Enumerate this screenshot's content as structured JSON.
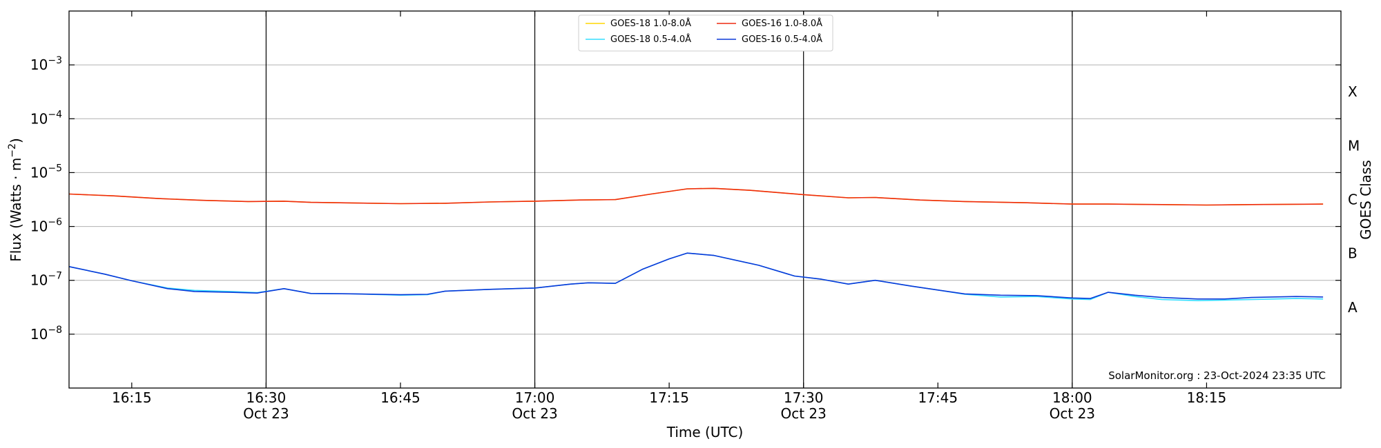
{
  "chart_data": {
    "type": "line",
    "xlabel": "Time (UTC)",
    "ylabel_main": "Flux (Watts · m",
    "ylabel_sup": "−2",
    "ylabel_end": ")",
    "y2label": "GOES Class",
    "yscale": "log",
    "ylim": [
      1e-09,
      0.01
    ],
    "xlim": [
      "16:08",
      "18:30"
    ],
    "grid": "horizontal",
    "x_ticks": [
      {
        "t": "16:15",
        "label": "16:15",
        "sub": ""
      },
      {
        "t": "16:30",
        "label": "16:30",
        "sub": "Oct 23"
      },
      {
        "t": "16:45",
        "label": "16:45",
        "sub": ""
      },
      {
        "t": "17:00",
        "label": "17:00",
        "sub": "Oct 23"
      },
      {
        "t": "17:15",
        "label": "17:15",
        "sub": ""
      },
      {
        "t": "17:30",
        "label": "17:30",
        "sub": "Oct 23"
      },
      {
        "t": "17:45",
        "label": "17:45",
        "sub": ""
      },
      {
        "t": "18:00",
        "label": "18:00",
        "sub": "Oct 23"
      },
      {
        "t": "18:15",
        "label": "18:15",
        "sub": ""
      }
    ],
    "vertical_lines": [
      "16:30",
      "17:00",
      "17:30",
      "18:00"
    ],
    "y_ticks": [
      {
        "v": 0.001,
        "base": "10",
        "exp": "−3"
      },
      {
        "v": 0.0001,
        "base": "10",
        "exp": "−4"
      },
      {
        "v": 1e-05,
        "base": "10",
        "exp": "−5"
      },
      {
        "v": 1e-06,
        "base": "10",
        "exp": "−6"
      },
      {
        "v": 1e-07,
        "base": "10",
        "exp": "−7"
      },
      {
        "v": 1e-08,
        "base": "10",
        "exp": "−8"
      }
    ],
    "class_labels": [
      {
        "v": 0.000316,
        "label": "X"
      },
      {
        "v": 3.16e-05,
        "label": "M"
      },
      {
        "v": 3.16e-06,
        "label": "C"
      },
      {
        "v": 3.16e-07,
        "label": "B"
      },
      {
        "v": 3.16e-08,
        "label": "A"
      }
    ],
    "legend_placement": "top-center",
    "legend_order": [
      0,
      2,
      1,
      3
    ],
    "credit": "SolarMonitor.org : 23-Oct-2024 23:35 UTC",
    "series": [
      {
        "name": "GOES-18 1.0-8.0Å",
        "color": "#ffd700",
        "points": [
          [
            "16:08",
            4e-06
          ],
          [
            "16:13",
            3.7e-06
          ],
          [
            "16:18",
            3.3e-06
          ],
          [
            "16:23",
            3.05e-06
          ],
          [
            "16:28",
            2.9e-06
          ],
          [
            "16:32",
            2.95e-06
          ],
          [
            "16:35",
            2.8e-06
          ],
          [
            "16:45",
            2.65e-06
          ],
          [
            "16:50",
            2.7e-06
          ],
          [
            "16:55",
            2.85e-06
          ],
          [
            "17:00",
            2.95e-06
          ],
          [
            "17:05",
            3.1e-06
          ],
          [
            "17:09",
            3.15e-06
          ],
          [
            "17:13",
            4e-06
          ],
          [
            "17:17",
            5e-06
          ],
          [
            "17:20",
            5.1e-06
          ],
          [
            "17:24",
            4.7e-06
          ],
          [
            "17:30",
            3.9e-06
          ],
          [
            "17:35",
            3.4e-06
          ],
          [
            "17:38",
            3.45e-06
          ],
          [
            "17:43",
            3.1e-06
          ],
          [
            "17:48",
            2.9e-06
          ],
          [
            "17:55",
            2.75e-06
          ],
          [
            "18:00",
            2.6e-06
          ],
          [
            "18:04",
            2.6e-06
          ],
          [
            "18:10",
            2.55e-06
          ],
          [
            "18:15",
            2.5e-06
          ],
          [
            "18:20",
            2.55e-06
          ],
          [
            "18:28",
            2.6e-06
          ]
        ]
      },
      {
        "name": "GOES-16 1.0-8.0Å",
        "color": "#ee2a10",
        "points": [
          [
            "16:08",
            4e-06
          ],
          [
            "16:13",
            3.7e-06
          ],
          [
            "16:18",
            3.3e-06
          ],
          [
            "16:23",
            3.05e-06
          ],
          [
            "16:28",
            2.9e-06
          ],
          [
            "16:32",
            2.95e-06
          ],
          [
            "16:35",
            2.8e-06
          ],
          [
            "16:45",
            2.65e-06
          ],
          [
            "16:50",
            2.7e-06
          ],
          [
            "16:55",
            2.85e-06
          ],
          [
            "17:00",
            2.95e-06
          ],
          [
            "17:05",
            3.1e-06
          ],
          [
            "17:09",
            3.15e-06
          ],
          [
            "17:13",
            4e-06
          ],
          [
            "17:17",
            5e-06
          ],
          [
            "17:20",
            5.1e-06
          ],
          [
            "17:24",
            4.7e-06
          ],
          [
            "17:30",
            3.9e-06
          ],
          [
            "17:35",
            3.4e-06
          ],
          [
            "17:38",
            3.45e-06
          ],
          [
            "17:43",
            3.1e-06
          ],
          [
            "17:48",
            2.9e-06
          ],
          [
            "17:55",
            2.75e-06
          ],
          [
            "18:00",
            2.6e-06
          ],
          [
            "18:04",
            2.6e-06
          ],
          [
            "18:10",
            2.55e-06
          ],
          [
            "18:15",
            2.5e-06
          ],
          [
            "18:20",
            2.55e-06
          ],
          [
            "18:28",
            2.6e-06
          ]
        ]
      },
      {
        "name": "GOES-18 0.5-4.0Å",
        "color": "#33ddff",
        "points": [
          [
            "16:08",
            1.8e-07
          ],
          [
            "16:12",
            1.3e-07
          ],
          [
            "16:15",
            9.8e-08
          ],
          [
            "16:19",
            7.2e-08
          ],
          [
            "16:22",
            6.5e-08
          ],
          [
            "16:26",
            6.2e-08
          ],
          [
            "16:29",
            5.9e-08
          ],
          [
            "16:32",
            7e-08
          ],
          [
            "16:35",
            5.7e-08
          ],
          [
            "16:40",
            5.6e-08
          ],
          [
            "16:45",
            5.3e-08
          ],
          [
            "16:48",
            5.4e-08
          ],
          [
            "16:50",
            6.3e-08
          ],
          [
            "16:55",
            6.8e-08
          ],
          [
            "17:00",
            7.2e-08
          ],
          [
            "17:04",
            8.5e-08
          ],
          [
            "17:06",
            9e-08
          ],
          [
            "17:09",
            8.8e-08
          ],
          [
            "17:12",
            1.6e-07
          ],
          [
            "17:15",
            2.5e-07
          ],
          [
            "17:17",
            3.2e-07
          ],
          [
            "17:20",
            2.9e-07
          ],
          [
            "17:25",
            1.9e-07
          ],
          [
            "17:29",
            1.2e-07
          ],
          [
            "17:32",
            1.05e-07
          ],
          [
            "17:35",
            8.5e-08
          ],
          [
            "17:38",
            1e-07
          ],
          [
            "17:42",
            7.8e-08
          ],
          [
            "17:45",
            6.6e-08
          ],
          [
            "17:48",
            5.5e-08
          ],
          [
            "17:52",
            4.9e-08
          ],
          [
            "17:56",
            5e-08
          ],
          [
            "18:00",
            4.5e-08
          ],
          [
            "18:02",
            4.4e-08
          ],
          [
            "18:04",
            6e-08
          ],
          [
            "18:07",
            5e-08
          ],
          [
            "18:10",
            4.4e-08
          ],
          [
            "18:14",
            4.2e-08
          ],
          [
            "18:17",
            4.3e-08
          ],
          [
            "18:20",
            4.4e-08
          ],
          [
            "18:25",
            4.6e-08
          ],
          [
            "18:28",
            4.5e-08
          ]
        ]
      },
      {
        "name": "GOES-16 0.5-4.0Å",
        "color": "#0a38d8",
        "points": [
          [
            "16:08",
            1.8e-07
          ],
          [
            "16:12",
            1.3e-07
          ],
          [
            "16:15",
            9.8e-08
          ],
          [
            "16:19",
            7e-08
          ],
          [
            "16:22",
            6.2e-08
          ],
          [
            "16:26",
            6e-08
          ],
          [
            "16:29",
            5.8e-08
          ],
          [
            "16:32",
            7e-08
          ],
          [
            "16:35",
            5.7e-08
          ],
          [
            "16:40",
            5.6e-08
          ],
          [
            "16:45",
            5.4e-08
          ],
          [
            "16:48",
            5.5e-08
          ],
          [
            "16:50",
            6.3e-08
          ],
          [
            "16:55",
            6.8e-08
          ],
          [
            "17:00",
            7.2e-08
          ],
          [
            "17:04",
            8.5e-08
          ],
          [
            "17:06",
            9e-08
          ],
          [
            "17:09",
            8.8e-08
          ],
          [
            "17:12",
            1.6e-07
          ],
          [
            "17:15",
            2.5e-07
          ],
          [
            "17:17",
            3.2e-07
          ],
          [
            "17:20",
            2.9e-07
          ],
          [
            "17:25",
            1.9e-07
          ],
          [
            "17:29",
            1.2e-07
          ],
          [
            "17:32",
            1.05e-07
          ],
          [
            "17:35",
            8.5e-08
          ],
          [
            "17:38",
            1e-07
          ],
          [
            "17:42",
            7.8e-08
          ],
          [
            "17:45",
            6.6e-08
          ],
          [
            "17:48",
            5.6e-08
          ],
          [
            "17:52",
            5.3e-08
          ],
          [
            "17:56",
            5.2e-08
          ],
          [
            "18:00",
            4.7e-08
          ],
          [
            "18:02",
            4.6e-08
          ],
          [
            "18:04",
            6e-08
          ],
          [
            "18:07",
            5.3e-08
          ],
          [
            "18:10",
            4.8e-08
          ],
          [
            "18:14",
            4.5e-08
          ],
          [
            "18:17",
            4.5e-08
          ],
          [
            "18:20",
            4.8e-08
          ],
          [
            "18:25",
            5e-08
          ],
          [
            "18:28",
            4.9e-08
          ]
        ]
      }
    ]
  }
}
